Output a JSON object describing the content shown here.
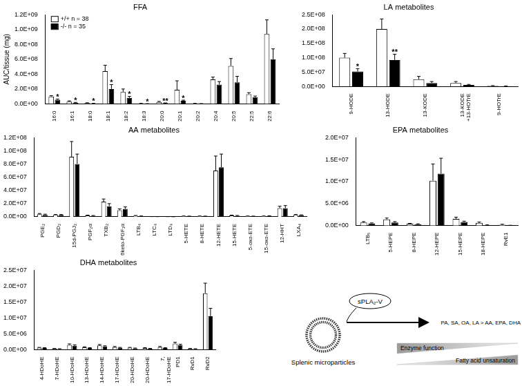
{
  "chart_data": [
    {
      "type": "bar",
      "title": "FFA",
      "y_label": "AUC/tissue (mg)",
      "categories": [
        "16:0",
        "16:1",
        "18:0",
        "18:1",
        "18:2",
        "18:3",
        "20:0",
        "20:1",
        "20:2",
        "20:4",
        "20:5",
        "22:5",
        "22:6"
      ],
      "series": [
        {
          "name": "+/+ n = 38",
          "color": "#ffffff",
          "values": [
            100000000,
            30000000,
            10000000,
            440000000,
            160000000,
            5000000,
            25000000,
            190000000,
            5000000,
            330000000,
            510000000,
            130000000,
            940000000
          ],
          "errors": [
            10000000,
            10000000,
            5000000,
            80000000,
            40000000,
            2000000,
            8000000,
            120000000,
            2000000,
            30000000,
            100000000,
            20000000,
            190000000
          ]
        },
        {
          "name": "-/- n = 35",
          "color": "#000000",
          "values": [
            55000000,
            15000000,
            5000000,
            200000000,
            80000000,
            2000000,
            10000000,
            40000000,
            3000000,
            260000000,
            290000000,
            90000000,
            600000000
          ],
          "errors": [
            10000000,
            5000000,
            2000000,
            60000000,
            20000000,
            1000000,
            3000000,
            10000000,
            1000000,
            40000000,
            80000000,
            15000000,
            140000000
          ],
          "annotations": [
            "*",
            "*",
            "*",
            "*",
            "*",
            "*",
            "**",
            "*",
            null,
            null,
            null,
            null,
            null
          ]
        }
      ],
      "ylim": [
        0,
        1200000000
      ],
      "yticks": [
        {
          "value": 0,
          "label": "0.0E+00"
        },
        {
          "value": 200000000,
          "label": "2.0E+08"
        },
        {
          "value": 400000000,
          "label": "4.0E+08"
        },
        {
          "value": 600000000,
          "label": "6.0E+08"
        },
        {
          "value": 800000000,
          "label": "8.0E+08"
        },
        {
          "value": 1000000000,
          "label": "1.0E+09"
        },
        {
          "value": 1200000000,
          "label": "1.2E+09"
        }
      ],
      "grid": false,
      "legend": "upper left"
    },
    {
      "type": "bar",
      "title": "LA metabolites",
      "categories": [
        "9-HODE",
        "13-HODE",
        "13-KODE",
        "13-KODE +13-HOTrE",
        "9-HOTrE"
      ],
      "series": [
        {
          "name": "+/+ n = 38",
          "color": "#ffffff",
          "values": [
            100000000,
            200000000,
            25000000,
            12000000,
            2000000
          ],
          "errors": [
            15000000,
            35000000,
            10000000,
            5000000,
            1000000
          ]
        },
        {
          "name": "-/- n = 35",
          "color": "#000000",
          "values": [
            52000000,
            92000000,
            12000000,
            5000000,
            1000000
          ],
          "errors": [
            10000000,
            20000000,
            5000000,
            2000000,
            500000
          ],
          "annotations": [
            "*",
            "**",
            null,
            null,
            null
          ]
        }
      ],
      "ylim": [
        0,
        250000000
      ],
      "yticks": [
        {
          "value": 0,
          "label": "0.0E+00"
        },
        {
          "value": 50000000,
          "label": "5.0E+07"
        },
        {
          "value": 100000000,
          "label": "1.0E+08"
        },
        {
          "value": 150000000,
          "label": "1.5E+08"
        },
        {
          "value": 200000000,
          "label": "2.0E+08"
        },
        {
          "value": 250000000,
          "label": "2.5E+08"
        }
      ],
      "grid": false
    },
    {
      "type": "bar",
      "title": "AA metabolites",
      "categories": [
        "PGE₂",
        "PGD₂",
        "15d-PGJ₂",
        "PGF₂α",
        "TXB₂",
        "6keto-PGF₁α",
        "LTB₄",
        "LTC₄",
        "LTD₄",
        "5-HETE",
        "8-HETE",
        "12-HETE",
        "15-HETE",
        "5-oxo-ETE",
        "15-oxo-ETE",
        "12-HHT",
        "LXA₄"
      ],
      "series": [
        {
          "name": "+/+ n = 38",
          "color": "#ffffff",
          "values": [
            4000000,
            3000000,
            91000000,
            2000000,
            23000000,
            10000000,
            1500000,
            300000,
            200000,
            1000000,
            1000000,
            70000000,
            2000000,
            1000000,
            1000000,
            13000000,
            3000000
          ],
          "errors": [
            1000000,
            500000,
            23000000,
            500000,
            4000000,
            2000000,
            500000,
            100000,
            100000,
            300000,
            300000,
            22000000,
            500000,
            300000,
            300000,
            3000000,
            500000
          ]
        },
        {
          "name": "-/- n = 35",
          "color": "#000000",
          "values": [
            3000000,
            3000000,
            80000000,
            1500000,
            16000000,
            12000000,
            1000000,
            200000,
            100000,
            800000,
            800000,
            75000000,
            1500000,
            800000,
            1200000,
            13000000,
            2500000
          ],
          "errors": [
            1000000,
            500000,
            15000000,
            500000,
            4000000,
            3000000,
            300000,
            100000,
            50000,
            300000,
            300000,
            20000000,
            500000,
            300000,
            300000,
            4000000,
            500000
          ]
        }
      ],
      "ylim": [
        0,
        120000000
      ],
      "yticks": [
        {
          "value": 0,
          "label": "0.0E+00"
        },
        {
          "value": 20000000,
          "label": "2.0E+07"
        },
        {
          "value": 40000000,
          "label": "4.0E+07"
        },
        {
          "value": 60000000,
          "label": "6.0E+07"
        },
        {
          "value": 80000000,
          "label": "8.0E+07"
        },
        {
          "value": 100000000,
          "label": "1.0E+08"
        },
        {
          "value": 120000000,
          "label": "1.2E+08"
        }
      ],
      "grid": false
    },
    {
      "type": "bar",
      "title": "EPA metabolites",
      "categories": [
        "LTB₅",
        "5-HEPE",
        "8-HEPE",
        "12-HEPE",
        "15-HEPE",
        "18-HEPE",
        "RvE1"
      ],
      "series": [
        {
          "name": "+/+ n = 38",
          "color": "#ffffff",
          "values": [
            700000,
            1400000,
            400000,
            10200000,
            1500000,
            600000,
            200000
          ],
          "errors": [
            200000,
            300000,
            100000,
            3800000,
            400000,
            200000,
            100000
          ]
        },
        {
          "name": "-/- n = 35",
          "color": "#000000",
          "values": [
            500000,
            700000,
            300000,
            11800000,
            800000,
            100000,
            50000
          ],
          "errors": [
            100000,
            200000,
            100000,
            3500000,
            200000,
            50000,
            20000
          ]
        }
      ],
      "ylim": [
        0,
        20000000
      ],
      "yticks": [
        {
          "value": 0,
          "label": "0.0E+00"
        },
        {
          "value": 5000000,
          "label": "5.0E+06"
        },
        {
          "value": 10000000,
          "label": "1.0E+07"
        },
        {
          "value": 15000000,
          "label": "1.5E+07"
        },
        {
          "value": 20000000,
          "label": "2.0E+07"
        }
      ],
      "grid": false
    },
    {
      "type": "bar",
      "title": "DHA metabolites",
      "categories": [
        "4-HDoHE",
        "7-HDoHE",
        "10-HDoHE",
        "13-HDoHE",
        "14-HDoHE",
        "17-HDoHE",
        "20-HDoHE",
        "20-HDoHE",
        "7, 17-HDoHE",
        "PD1",
        "RvD1",
        "RvD2"
      ],
      "series": [
        {
          "name": "+/+ n = 38",
          "color": "#ffffff",
          "values": [
            600000,
            300000,
            1500000,
            700000,
            1300000,
            800000,
            600000,
            500000,
            800000,
            1900000,
            300000,
            17700000
          ],
          "errors": [
            100000,
            100000,
            300000,
            200000,
            300000,
            200000,
            100000,
            100000,
            200000,
            400000,
            100000,
            3200000
          ]
        },
        {
          "name": "-/- n = 35",
          "color": "#000000",
          "values": [
            500000,
            200000,
            1200000,
            500000,
            1000000,
            600000,
            400000,
            300000,
            500000,
            1400000,
            200000,
            10500000
          ],
          "errors": [
            100000,
            100000,
            300000,
            100000,
            200000,
            100000,
            100000,
            100000,
            100000,
            300000,
            100000,
            2500000
          ]
        }
      ],
      "ylim": [
        0,
        25000000
      ],
      "yticks": [
        {
          "value": 0,
          "label": "0.0E+00"
        },
        {
          "value": 5000000,
          "label": "5.0E+06"
        },
        {
          "value": 10000000,
          "label": "1.0E+07"
        },
        {
          "value": 15000000,
          "label": "1.5E+07"
        },
        {
          "value": 20000000,
          "label": "2.0E+07"
        },
        {
          "value": 25000000,
          "label": "2.5E+07"
        }
      ],
      "grid": false
    }
  ],
  "diagram": {
    "particle_label": "Splenic microparticles",
    "enzyme": "sPLA₂-V",
    "result": "PA, SA, OA, LA > AA, EPA, DHA",
    "gradient_top": "Enzyme function",
    "gradient_bottom": "Fatty acid unsaturation"
  }
}
